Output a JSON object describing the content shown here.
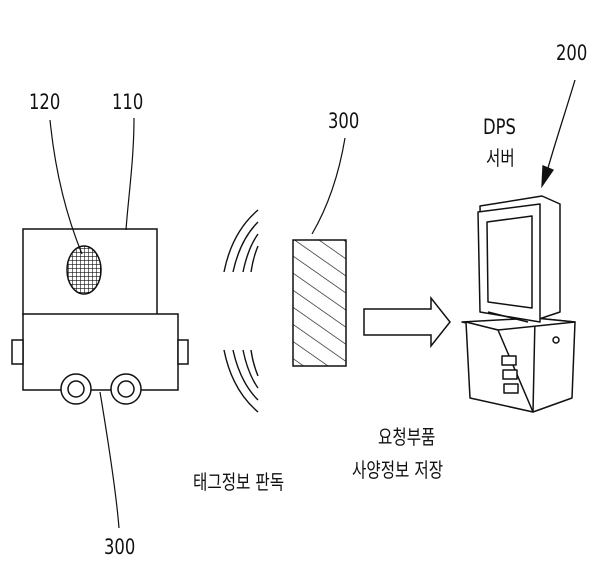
{
  "labels": {
    "ref_120": "120",
    "ref_110": "110",
    "ref_300_tag": "300",
    "ref_300_vehicle": "300",
    "ref_200": "200",
    "server_line1": "DPS",
    "server_line2": "서버",
    "tag_read_caption": "태그정보 판독",
    "store_line1": "요청부품",
    "store_line2": "사양정보 저장"
  }
}
